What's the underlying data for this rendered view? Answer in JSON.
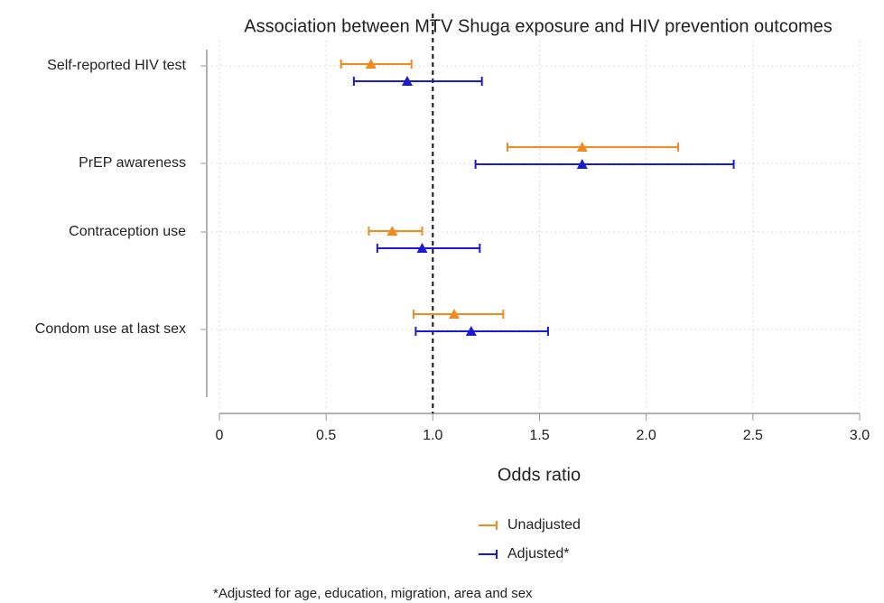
{
  "chart_data": {
    "type": "forest",
    "title": "Association between MTV Shuga exposure and HIV prevention outcomes",
    "x_label": "Odds ratio",
    "footnote": "*Adjusted for age, education, migration, area and sex",
    "categories": [
      "Self-reported HIV test",
      "PrEP awareness",
      "Contraception use",
      "Condom use at last sex"
    ],
    "series": [
      {
        "name": "Unadjusted",
        "color": "#f28a1e",
        "values": [
          0.71,
          1.7,
          0.81,
          1.1
        ],
        "lower": [
          0.57,
          1.35,
          0.7,
          0.91
        ],
        "upper": [
          0.9,
          2.15,
          0.95,
          1.33
        ]
      },
      {
        "name": "Adjusted*",
        "color": "#1a1ad6",
        "values": [
          0.88,
          1.7,
          0.95,
          1.18
        ],
        "lower": [
          0.63,
          1.2,
          0.74,
          0.92
        ],
        "upper": [
          1.23,
          2.41,
          1.22,
          1.54
        ]
      }
    ],
    "xlim": [
      0,
      3
    ],
    "xticks": [
      0,
      0.5,
      {
        "value": 1,
        "label": "1.0"
      },
      1.5,
      {
        "value": 2,
        "label": "2.0"
      },
      2.5,
      {
        "value": 3,
        "label": "3.0"
      }
    ],
    "reference_line": 1,
    "grid": true
  }
}
